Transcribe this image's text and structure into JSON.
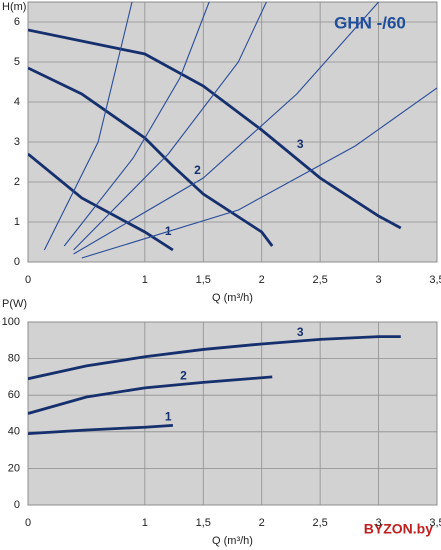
{
  "chart_data": [
    {
      "type": "line",
      "title": "GHN -/60",
      "ylabel": "H(m)",
      "xlabel": "Q (m³/h)",
      "xlim": [
        0,
        3.5
      ],
      "ylim": [
        0,
        6.5
      ],
      "xticks": [
        0,
        1,
        {
          "value": 1.5,
          "label": "1,5"
        },
        2,
        {
          "value": 2.5,
          "label": "2,5"
        },
        3,
        {
          "value": 3.5,
          "label": "3,5"
        }
      ],
      "yticks": [
        0,
        1,
        2,
        3,
        4,
        5,
        6
      ],
      "grid": true,
      "series": [
        {
          "name": "1",
          "color": "#16306e",
          "x": [
            0,
            0.46,
            1,
            1.24
          ],
          "values": [
            2.7,
            1.6,
            0.75,
            0.3
          ]
        },
        {
          "name": "2",
          "color": "#16306e",
          "x": [
            0,
            0.46,
            1,
            1.24,
            1.5,
            2,
            2.09
          ],
          "values": [
            4.85,
            4.2,
            3.1,
            2.4,
            1.7,
            0.75,
            0.4
          ]
        },
        {
          "name": "3",
          "color": "#16306e",
          "x": [
            0,
            1,
            1.5,
            2,
            2.5,
            3,
            3.19
          ],
          "values": [
            5.8,
            5.2,
            4.4,
            3.3,
            2.1,
            1.15,
            0.85
          ]
        },
        {
          "color": "#2a4d9a",
          "x": [
            0.14,
            0.6,
            0.89
          ],
          "values": [
            0.3,
            3,
            6.5
          ]
        },
        {
          "color": "#2a4d9a",
          "x": [
            0.31,
            0.9,
            1.3,
            1.55
          ],
          "values": [
            0.4,
            2.6,
            4.6,
            6.5
          ]
        },
        {
          "color": "#2a4d9a",
          "x": [
            0.39,
            1.2,
            1.8,
            2.04
          ],
          "values": [
            0.3,
            2.7,
            5,
            6.5
          ]
        },
        {
          "color": "#2a4d9a",
          "x": [
            0.39,
            1.5,
            2.3,
            3
          ],
          "values": [
            0.2,
            2.1,
            4.2,
            6.5
          ]
        },
        {
          "color": "#2a4d9a",
          "x": [
            0.46,
            1.8,
            2.8,
            3.5
          ],
          "values": [
            0.1,
            1.3,
            2.9,
            4.35
          ]
        }
      ]
    },
    {
      "type": "line",
      "ylabel": "P(W)",
      "xlabel": "Q (m³/h)",
      "xlim": [
        0,
        3.5
      ],
      "ylim": [
        0,
        100
      ],
      "xticks": [
        0,
        1,
        {
          "value": 1.5,
          "label": "1,5"
        },
        2,
        {
          "value": 2.5,
          "label": "2,5"
        },
        3,
        {
          "value": 3.5,
          "label": "3,5"
        }
      ],
      "yticks": [
        0,
        20,
        40,
        60,
        80,
        100
      ],
      "grid": true,
      "series": [
        {
          "name": "1",
          "color": "#16306e",
          "x": [
            0,
            0.5,
            1,
            1.24
          ],
          "values": [
            39,
            41,
            42.5,
            43.5
          ]
        },
        {
          "name": "2",
          "color": "#16306e",
          "x": [
            0,
            0.5,
            1,
            1.5,
            2.09
          ],
          "values": [
            50,
            59,
            64,
            67,
            70
          ]
        },
        {
          "name": "3",
          "color": "#16306e",
          "x": [
            0,
            0.5,
            1,
            1.5,
            2,
            2.5,
            3,
            3.19
          ],
          "values": [
            69,
            76,
            81,
            85,
            88,
            90.5,
            92,
            92
          ]
        }
      ]
    }
  ],
  "watermark": "BYZON.by"
}
